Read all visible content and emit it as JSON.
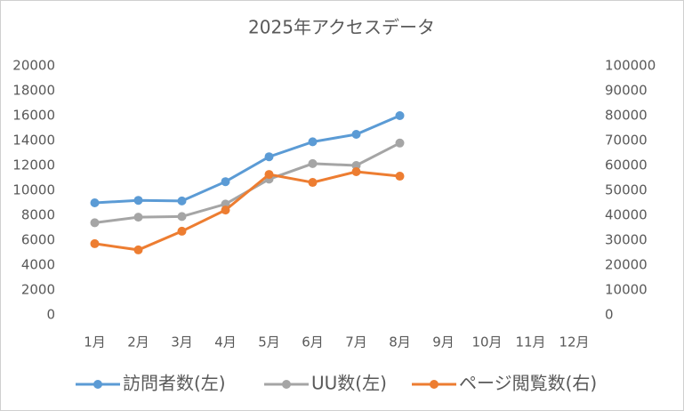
{
  "chart_data": {
    "type": "line",
    "title": "2025年アクセスデータ",
    "categories": [
      "1月",
      "2月",
      "3月",
      "4月",
      "5月",
      "6月",
      "7月",
      "8月",
      "9月",
      "10月",
      "11月",
      "12月"
    ],
    "series": [
      {
        "name": "訪問者数(左)",
        "color": "#5b9bd5",
        "values": [
          9000,
          9200,
          9150,
          10700,
          12700,
          13900,
          14500,
          16000,
          null,
          null,
          null,
          null
        ]
      },
      {
        "name": "UU数(左)",
        "color": "#a5a5a5",
        "values": [
          7400,
          7850,
          7900,
          8900,
          10900,
          12150,
          12000,
          13800,
          null,
          null,
          null,
          null
        ]
      },
      {
        "name": "ページ閲覧数(右)",
        "color": "#ed7d31",
        "axis": "y2",
        "values": [
          28600,
          26100,
          33600,
          42100,
          56400,
          53200,
          57500,
          55700,
          null,
          null,
          null,
          null
        ]
      }
    ],
    "ylim": [
      0,
      20000
    ],
    "yticks": [
      0,
      2000,
      4000,
      6000,
      8000,
      10000,
      12000,
      14000,
      16000,
      18000,
      20000
    ],
    "y2lim": [
      0,
      100000
    ],
    "y2ticks": [
      0,
      10000,
      20000,
      30000,
      40000,
      50000,
      60000,
      70000,
      80000,
      90000,
      100000
    ],
    "legend": "bottom"
  }
}
